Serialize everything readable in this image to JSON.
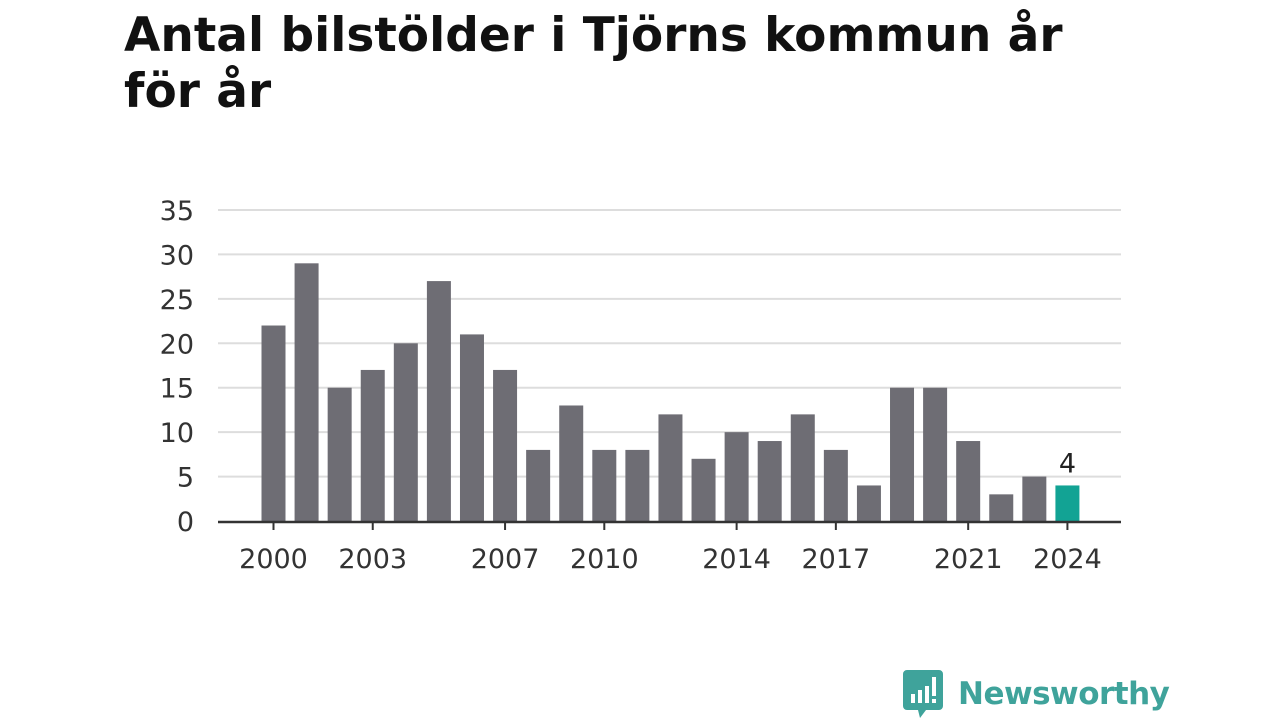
{
  "title": "Antal bilstölder i Tjörns kommun år för år",
  "chart_data": {
    "type": "bar",
    "x": [
      2000,
      2001,
      2002,
      2003,
      2004,
      2005,
      2006,
      2007,
      2008,
      2009,
      2010,
      2011,
      2012,
      2013,
      2014,
      2015,
      2016,
      2017,
      2018,
      2019,
      2020,
      2021,
      2022,
      2023,
      2024
    ],
    "values": [
      22,
      29,
      15,
      17,
      20,
      27,
      21,
      17,
      8,
      13,
      8,
      8,
      12,
      7,
      10,
      9,
      12,
      8,
      4,
      15,
      15,
      9,
      3,
      5,
      4
    ],
    "x_tick_labels": [
      "2000",
      "2003",
      "2007",
      "2010",
      "2014",
      "2017",
      "2021",
      "2024"
    ],
    "y_ticks": [
      0,
      5,
      10,
      15,
      20,
      25,
      30,
      35
    ],
    "ylim": [
      0,
      35
    ],
    "grid": true,
    "highlight": {
      "x": 2024,
      "label": "4"
    },
    "colors": {
      "bar": "#6e6d74",
      "highlight": "#12a394",
      "grid": "#dddddd",
      "axis": "#333333"
    }
  },
  "brand": {
    "name": "Newsworthy",
    "color": "#3fa39b",
    "icon": "newsworthy-logo-icon"
  }
}
